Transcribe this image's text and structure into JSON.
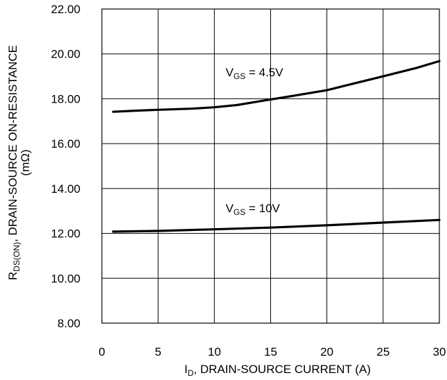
{
  "chart_data": {
    "type": "line",
    "xlim": [
      0,
      30
    ],
    "ylim": [
      8,
      22
    ],
    "x_ticks": [
      "0",
      "5",
      "10",
      "15",
      "20",
      "25",
      "30"
    ],
    "y_ticks": [
      "8.00",
      "10.00",
      "12.00",
      "14.00",
      "16.00",
      "18.00",
      "20.00",
      "22.00"
    ],
    "grid": true,
    "xlabel": {
      "sym": "I",
      "sub": "D",
      "rest": ", DRAIN-SOURCE CURRENT (A)"
    },
    "ylabel": {
      "sym": "R",
      "sub": "DS(ON)",
      "rest": ", DRAIN-SOURCE ON-RESISTANCE",
      "line2": "(mΩ)"
    },
    "series": [
      {
        "label": {
          "sym": "V",
          "sub": "GS",
          "rest": " = 4.5V"
        },
        "label_at": [
          11,
          19
        ],
        "color": "#000000",
        "points": [
          [
            1,
            17.42
          ],
          [
            3,
            17.47
          ],
          [
            5,
            17.51
          ],
          [
            8,
            17.56
          ],
          [
            10,
            17.62
          ],
          [
            12,
            17.72
          ],
          [
            15,
            17.97
          ],
          [
            17,
            18.13
          ],
          [
            20,
            18.38
          ],
          [
            22,
            18.63
          ],
          [
            25,
            19.0
          ],
          [
            28,
            19.38
          ],
          [
            30,
            19.68
          ]
        ]
      },
      {
        "label": {
          "sym": "V",
          "sub": "GS",
          "rest": " = 10V"
        },
        "label_at": [
          11,
          12.95
        ],
        "color": "#000000",
        "points": [
          [
            1,
            12.08
          ],
          [
            5,
            12.11
          ],
          [
            10,
            12.18
          ],
          [
            15,
            12.26
          ],
          [
            20,
            12.36
          ],
          [
            25,
            12.48
          ],
          [
            30,
            12.6
          ]
        ]
      }
    ]
  }
}
